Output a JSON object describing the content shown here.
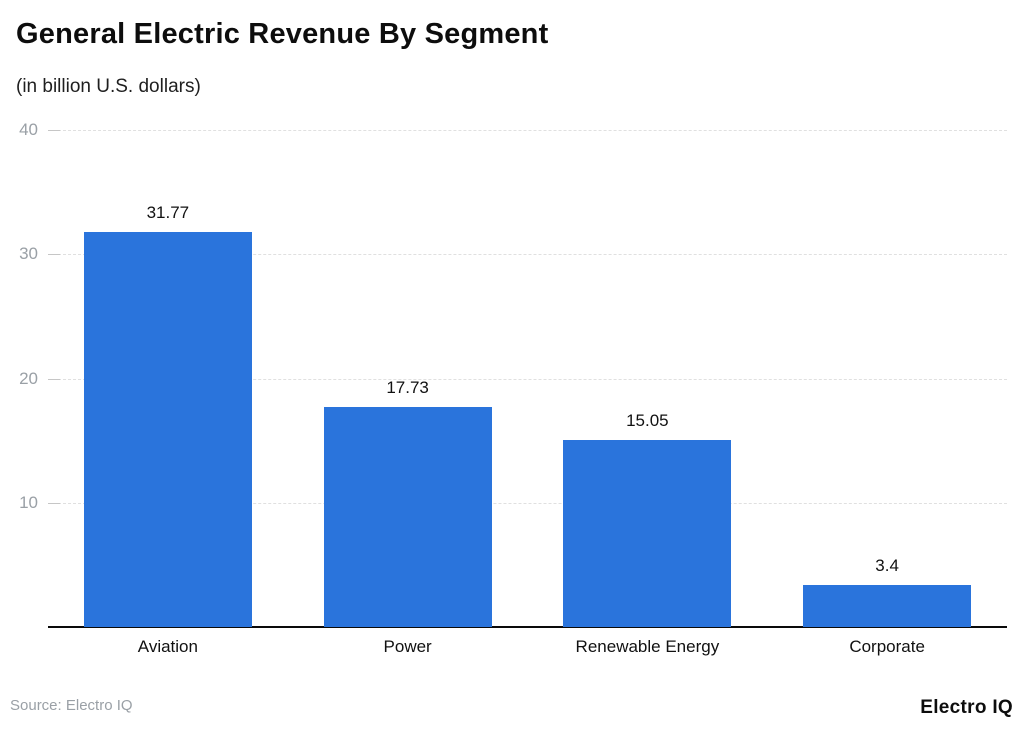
{
  "header": {
    "title": "General Electric Revenue By Segment",
    "subtitle": "(in billion U.S. dollars)"
  },
  "footer": {
    "source": "Source: Electro IQ",
    "brand": "Electro IQ"
  },
  "colors": {
    "bar": "#2A74DC",
    "grid": "#e0e0e0",
    "tick": "#c6c6c6",
    "axis": "#0a0a0a",
    "axis_text": "#9aa0a6",
    "label_text": "#111111"
  },
  "chart_data": {
    "type": "bar",
    "categories": [
      "Aviation",
      "Power",
      "Renewable Energy",
      "Corporate"
    ],
    "values": [
      31.77,
      17.73,
      15.05,
      3.4
    ],
    "value_labels": [
      "31.77",
      "17.73",
      "15.05",
      "3.4"
    ],
    "title": "General Electric Revenue By Segment",
    "subtitle": "(in billion U.S. dollars)",
    "xlabel": "",
    "ylabel": "",
    "ylim": [
      0,
      40
    ],
    "y_ticks": [
      10,
      20,
      30,
      40
    ],
    "grid": true,
    "legend_position": "none",
    "bar_color": "#2A74DC"
  }
}
